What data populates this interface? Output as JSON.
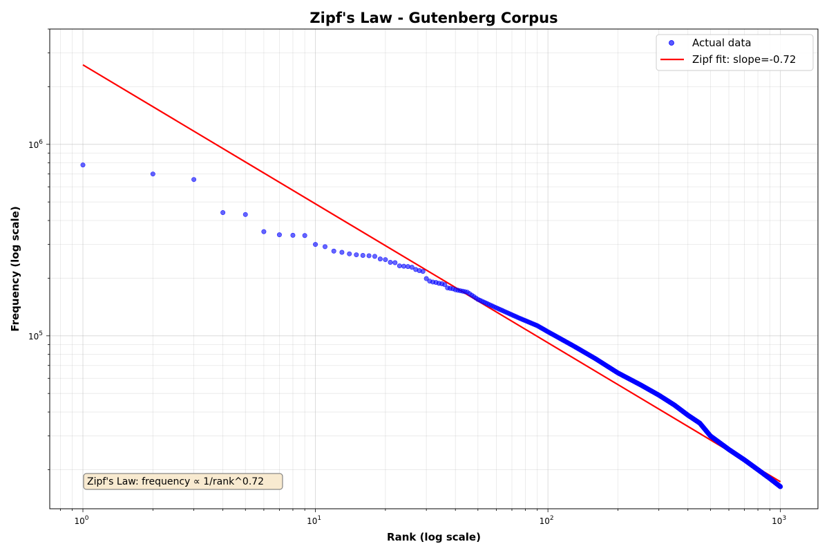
{
  "chart_data": {
    "type": "scatter",
    "title": "Zipf's Law - Gutenberg Corpus",
    "xlabel": "Rank (log scale)",
    "ylabel": "Frequency (log scale)",
    "xscale": "log",
    "yscale": "log",
    "xlim": [
      0.72,
      1450
    ],
    "ylim": [
      12500,
      4000000
    ],
    "x_ticks": [
      {
        "value": 1,
        "base": "10",
        "exp": "0"
      },
      {
        "value": 10,
        "base": "10",
        "exp": "1"
      },
      {
        "value": 100,
        "base": "10",
        "exp": "2"
      },
      {
        "value": 1000,
        "base": "10",
        "exp": "3"
      }
    ],
    "y_ticks": [
      {
        "value": 100000,
        "base": "10",
        "exp": "5"
      },
      {
        "value": 1000000,
        "base": "10",
        "exp": "6"
      }
    ],
    "grid": true,
    "legend_position": "top-right",
    "series": [
      {
        "name": "Actual data",
        "kind": "scatter",
        "color": "#0000ff",
        "explicit_points": [
          [
            1,
            780000
          ],
          [
            2,
            700000
          ],
          [
            3,
            655000
          ],
          [
            4,
            440000
          ],
          [
            5,
            430000
          ],
          [
            6,
            350000
          ],
          [
            7,
            337000
          ],
          [
            8,
            335000
          ],
          [
            9,
            334000
          ],
          [
            10,
            300000
          ],
          [
            11,
            292000
          ],
          [
            12,
            277000
          ],
          [
            13,
            273000
          ],
          [
            14,
            268000
          ],
          [
            15,
            265000
          ],
          [
            16,
            263000
          ],
          [
            17,
            262000
          ],
          [
            18,
            260000
          ],
          [
            19,
            252000
          ],
          [
            20,
            250000
          ],
          [
            21,
            242000
          ],
          [
            22,
            241000
          ],
          [
            23,
            232000
          ],
          [
            24,
            231000
          ],
          [
            25,
            230000
          ],
          [
            26,
            228000
          ],
          [
            27,
            222000
          ],
          [
            28,
            219000
          ],
          [
            29,
            217000
          ],
          [
            30,
            199000
          ],
          [
            31,
            193000
          ],
          [
            32,
            191000
          ],
          [
            33,
            190000
          ],
          [
            34,
            188000
          ],
          [
            35,
            187000
          ],
          [
            36,
            185000
          ],
          [
            37,
            178000
          ],
          [
            38,
            177000
          ],
          [
            39,
            176000
          ],
          [
            40,
            174000
          ],
          [
            41,
            173000
          ],
          [
            42,
            172000
          ],
          [
            43,
            171000
          ],
          [
            44,
            170000
          ],
          [
            45,
            169000
          ]
        ],
        "tail_anchors": [
          [
            45,
            169000
          ],
          [
            50,
            155000
          ],
          [
            60,
            140000
          ],
          [
            75,
            124000
          ],
          [
            90,
            113000
          ],
          [
            100,
            105000
          ],
          [
            130,
            88000
          ],
          [
            160,
            76000
          ],
          [
            200,
            64000
          ],
          [
            250,
            55500
          ],
          [
            300,
            49000
          ],
          [
            350,
            43500
          ],
          [
            400,
            38500
          ],
          [
            450,
            35000
          ],
          [
            500,
            30000
          ],
          [
            600,
            25500
          ],
          [
            700,
            22500
          ],
          [
            800,
            20000
          ],
          [
            900,
            18000
          ],
          [
            1000,
            16300
          ]
        ],
        "tail_range": [
          46,
          1000
        ]
      },
      {
        "name": "Zipf fit: slope=-0.72",
        "kind": "line",
        "color": "#ff0000",
        "x": [
          1,
          1000
        ],
        "y": [
          2600000,
          17300
        ]
      }
    ],
    "annotation": {
      "text": "Zipf's Law: frequency ∝ 1/rank^0.72",
      "position": "bottom-left"
    }
  }
}
